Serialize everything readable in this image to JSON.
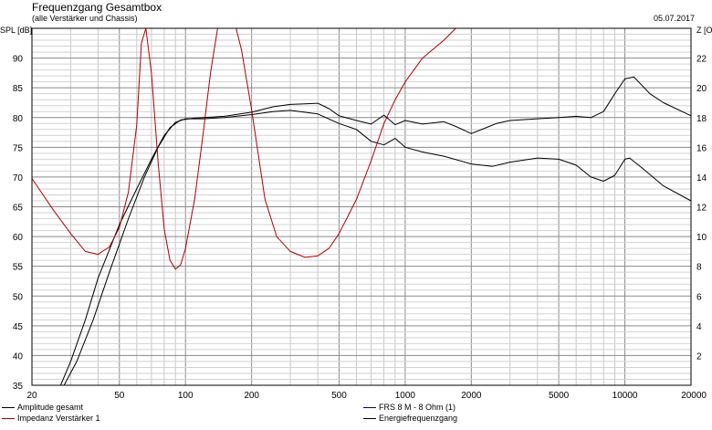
{
  "chart_data": {
    "type": "line",
    "title": "Frequenzgang Gesamtbox",
    "subtitle": "(alle Verstärker und Chassis)",
    "date": "05.07.2017",
    "ylabel_left": "SPL [dB]",
    "ylabel_right": "Z [Ohm]",
    "x_scale": "log",
    "xlim": [
      20,
      20000
    ],
    "ylim_left": [
      35,
      95
    ],
    "ylim_right": [
      0,
      24
    ],
    "grid": true,
    "x_ticks": [
      20,
      50,
      100,
      200,
      500,
      1000,
      2000,
      5000,
      10000,
      20000
    ],
    "x_tick_labels": [
      "20",
      "50",
      "100",
      "200",
      "500",
      "1000",
      "2000",
      "5000",
      "10000",
      "20000"
    ],
    "y_ticks_left": [
      "35",
      "40",
      "45",
      "50",
      "55",
      "60",
      "65",
      "70",
      "75",
      "80",
      "85",
      "90"
    ],
    "y_ticks_right": [
      "2",
      "4",
      "6",
      "8",
      "10",
      "12",
      "14",
      "16",
      "18",
      "20",
      "22"
    ],
    "legend": [
      {
        "name": "Amplitude gesamt",
        "color": "#000000"
      },
      {
        "name": "Impedanz Verstärker 1",
        "color": "#b00000"
      },
      {
        "name": "FRS 8 M - 8 Ohm (1)",
        "color": "#000080"
      },
      {
        "name": "Energiefrequenzgang",
        "color": "#000000"
      }
    ],
    "series": [
      {
        "name": "Amplitude gesamt",
        "color": "#000000",
        "axis": "left",
        "x": [
          20,
          27,
          30,
          35,
          40,
          50,
          60,
          70,
          80,
          90,
          100,
          120,
          150,
          200,
          250,
          300,
          400,
          500,
          600,
          700,
          800,
          900,
          1000,
          1200,
          1500,
          2000,
          2500,
          3000,
          4000,
          5000,
          6000,
          7000,
          8000,
          9000,
          10000,
          10500,
          12000,
          15000,
          20000
        ],
        "y": [
          35,
          35,
          39,
          46,
          53,
          62,
          68,
          73,
          77,
          79.2,
          79.8,
          79.8,
          80,
          80.5,
          81,
          81.2,
          80.6,
          79,
          78,
          76,
          75.4,
          76.5,
          75,
          74.2,
          73.5,
          72.2,
          71.8,
          72.5,
          73.2,
          73,
          72,
          70,
          69.3,
          70.3,
          73,
          73.2,
          71.5,
          68.5,
          66
        ]
      },
      {
        "name": "Impedanz Verstärker 1",
        "color": "#b00000",
        "axis": "right",
        "x": [
          20,
          25,
          30,
          35,
          40,
          45,
          50,
          55,
          60,
          63,
          66,
          70,
          75,
          80,
          85,
          90,
          95,
          100,
          110,
          120,
          130,
          140,
          150,
          160,
          170,
          180,
          200,
          230,
          260,
          300,
          350,
          400,
          450,
          500,
          600,
          700,
          800,
          900,
          1000,
          1200,
          1500,
          1700,
          2000,
          20000
        ],
        "y": [
          13.9,
          11.8,
          10.2,
          9,
          8.8,
          9.3,
          10.6,
          13,
          17.5,
          23,
          24,
          21,
          15,
          10.5,
          8.4,
          7.8,
          8.1,
          9.2,
          12.5,
          16.8,
          21,
          24,
          24,
          24,
          24,
          22.5,
          18.5,
          12.5,
          10,
          9,
          8.6,
          8.7,
          9.2,
          10.2,
          12.5,
          15.1,
          17.6,
          19.2,
          20.4,
          22,
          23.2,
          24,
          24,
          24
        ]
      },
      {
        "name": "FRS 8 M - 8 Ohm (1)",
        "color": "#000080",
        "axis": "left",
        "x": [],
        "y": []
      },
      {
        "name": "Energiefrequenzgang",
        "color": "#000000",
        "axis": "left",
        "x": [
          20,
          28,
          32,
          38,
          45,
          55,
          65,
          75,
          85,
          95,
          110,
          150,
          200,
          250,
          300,
          350,
          400,
          450,
          500,
          600,
          700,
          800,
          900,
          1000,
          1200,
          1500,
          1700,
          2000,
          2300,
          2600,
          3000,
          4000,
          5000,
          6000,
          7000,
          8000,
          9000,
          10000,
          11000,
          13000,
          15000,
          20000
        ],
        "y": [
          35,
          35,
          39,
          46,
          54,
          63,
          70,
          75,
          78.3,
          79.6,
          79.9,
          80.2,
          80.9,
          81.8,
          82.2,
          82.3,
          82.4,
          81.5,
          80.3,
          79.5,
          78.9,
          80.4,
          78.8,
          79.5,
          78.9,
          79.3,
          78.5,
          77.3,
          78.2,
          79,
          79.5,
          79.8,
          80,
          80.2,
          80,
          81,
          84,
          86.5,
          86.8,
          84,
          82.5,
          80.3
        ]
      }
    ]
  }
}
